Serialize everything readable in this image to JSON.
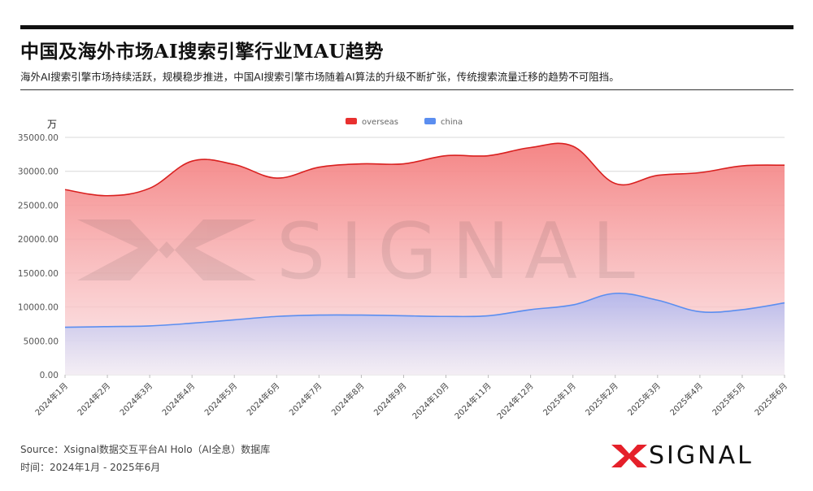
{
  "header": {
    "title": "中国及海外市场AI搜索引擎行业MAU趋势",
    "subtitle": "海外AI搜索引擎市场持续活跃，规模稳步推进，中国AI搜索引擎市场随着AI算法的升级不断扩张，传统搜索流量迁移的趋势不可阻挡。"
  },
  "footer": {
    "source": "Source：Xsignal数据交互平台AI Holo（AI全息）数据库",
    "time": "时间：2024年1月 - 2025年6月"
  },
  "logo": {
    "text": "SIGNAL",
    "mark": "X",
    "watermark": "X SIGNAL"
  },
  "colors": {
    "overseas": "#e8302f",
    "china": "#5b8ef0",
    "logo_mark": "#e5202a"
  },
  "chart_data": {
    "type": "area",
    "unit_label": "万",
    "categories": [
      "2024年1月",
      "2024年2月",
      "2024年3月",
      "2024年4月",
      "2024年5月",
      "2024年6月",
      "2024年7月",
      "2024年8月",
      "2024年9月",
      "2024年10月",
      "2024年11月",
      "2024年12月",
      "2025年1月",
      "2025年2月",
      "2025年3月",
      "2025年4月",
      "2025年5月",
      "2025年6月"
    ],
    "series": [
      {
        "name": "overseas",
        "values": [
          27300,
          26400,
          27500,
          31500,
          31000,
          29000,
          30600,
          31100,
          31100,
          32300,
          32300,
          33500,
          33700,
          28200,
          29400,
          29800,
          30800,
          30900
        ]
      },
      {
        "name": "china",
        "values": [
          7000,
          7100,
          7200,
          7600,
          8100,
          8600,
          8800,
          8800,
          8700,
          8600,
          8700,
          9600,
          10300,
          12000,
          11000,
          9300,
          9600,
          10600
        ]
      }
    ],
    "yticks": [
      "0.00",
      "5000.00",
      "10000.00",
      "15000.00",
      "20000.00",
      "25000.00",
      "30000.00",
      "35000.00"
    ],
    "ylim": [
      0,
      35000
    ],
    "legend_position": "top-center",
    "grid": true
  }
}
